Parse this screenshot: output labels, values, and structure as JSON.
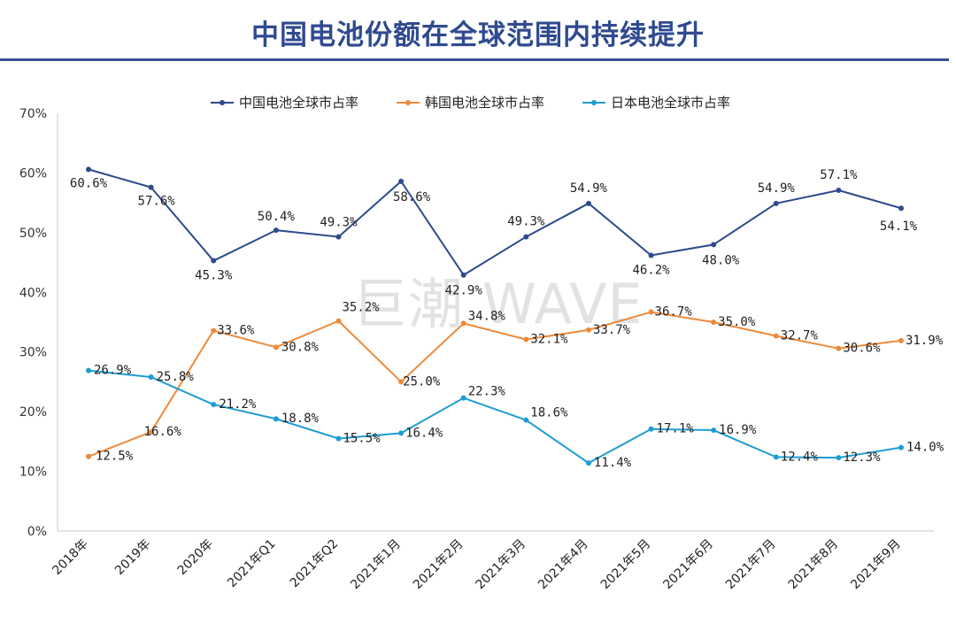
{
  "page": {
    "title": "中国电池份额在全球范围内持续提升",
    "watermark": "巨潮 WAVE",
    "colors": {
      "title": "#2f4a8f",
      "rule": "#34508f"
    }
  },
  "chart_data": {
    "type": "line",
    "title": "中国电池份额在全球范围内持续提升",
    "xlabel": "",
    "ylabel": "",
    "ylim": [
      0,
      70
    ],
    "y_ticks": [
      0,
      10,
      20,
      30,
      40,
      50,
      60,
      70
    ],
    "y_tick_labels": [
      "0%",
      "10%",
      "20%",
      "30%",
      "40%",
      "50%",
      "60%",
      "70%"
    ],
    "grid": false,
    "legend_position": "top-center",
    "categories": [
      "2018年",
      "2019年",
      "2020年",
      "2021年Q1",
      "2021年Q2",
      "2021年1月",
      "2021年2月",
      "2021年3月",
      "2021年4月",
      "2021年5月",
      "2021年6月",
      "2021年7月",
      "2021年8月",
      "2021年9月"
    ],
    "series": [
      {
        "name": "中国电池全球市占率",
        "color": "#2e4a8b",
        "values": [
          60.6,
          57.6,
          45.3,
          50.4,
          49.3,
          58.6,
          42.9,
          49.3,
          54.9,
          46.2,
          48.0,
          54.9,
          57.1,
          54.1
        ],
        "labels": [
          "60.6%",
          "57.6%",
          "45.3%",
          "50.4%",
          "49.3%",
          "58.6%",
          "42.9%",
          "49.3%",
          "54.9%",
          "46.2%",
          "48.0%",
          "54.9%",
          "57.1%",
          "54.1%"
        ]
      },
      {
        "name": "韩国电池全球市占率",
        "color": "#ed8a3a",
        "values": [
          12.5,
          16.6,
          33.6,
          30.8,
          35.2,
          25.0,
          34.8,
          32.1,
          33.7,
          36.7,
          35.0,
          32.7,
          30.6,
          31.9
        ],
        "labels": [
          "12.5%",
          "16.6%",
          "33.6%",
          "30.8%",
          "35.2%",
          "25.0%",
          "34.8%",
          "32.1%",
          "33.7%",
          "36.7%",
          "35.0%",
          "32.7%",
          "30.6%",
          "31.9%"
        ]
      },
      {
        "name": "日本电池全球市占率",
        "color": "#1f9dd2",
        "values": [
          26.9,
          25.8,
          21.2,
          18.8,
          15.5,
          16.4,
          22.3,
          18.6,
          11.4,
          17.1,
          16.9,
          12.4,
          12.3,
          14.0
        ],
        "labels": [
          "26.9%",
          "25.8%",
          "21.2%",
          "18.8%",
          "15.5%",
          "16.4%",
          "22.3%",
          "18.6%",
          "11.4%",
          "17.1%",
          "16.9%",
          "12.4%",
          "12.3%",
          "14.0%"
        ]
      }
    ]
  }
}
